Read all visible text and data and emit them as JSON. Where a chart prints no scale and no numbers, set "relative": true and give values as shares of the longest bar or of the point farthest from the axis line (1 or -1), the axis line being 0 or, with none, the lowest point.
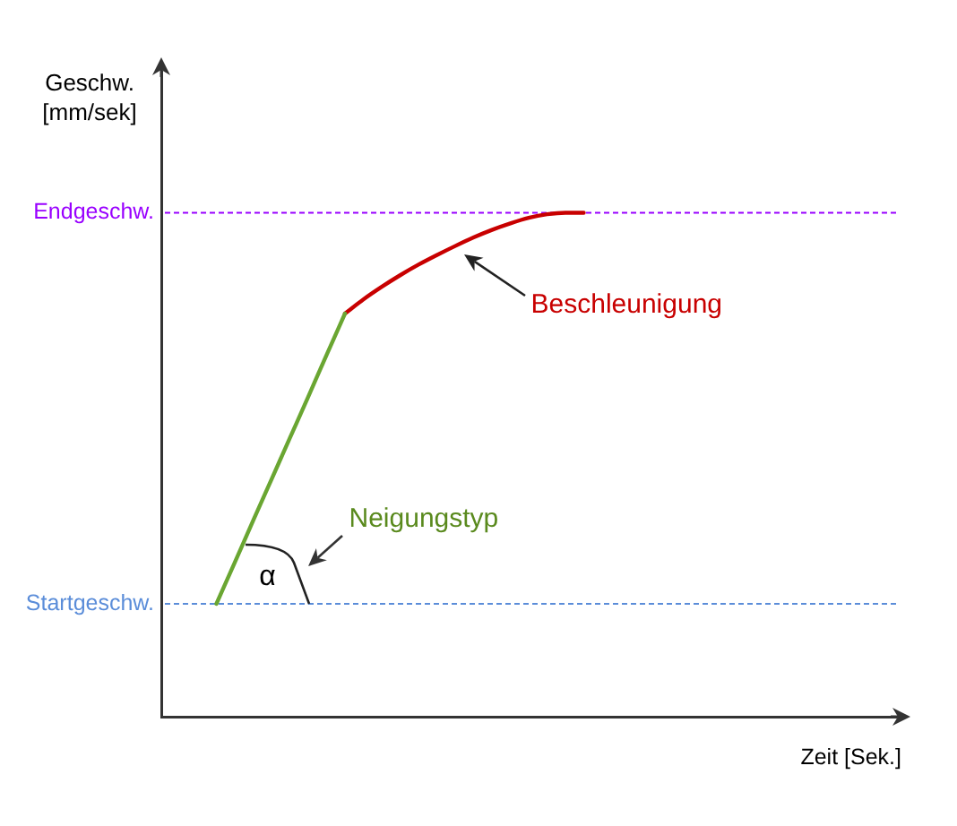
{
  "chart_data": {
    "type": "line",
    "relative": true,
    "ylabel": "Geschw.\n[mm/sek]",
    "xlabel": "Zeit [Sek.]",
    "categories": [
      null,
      null,
      null,
      null,
      null,
      null,
      null,
      null,
      null,
      null,
      null,
      null,
      null,
      null,
      null,
      null,
      null,
      null,
      null,
      null,
      null,
      null,
      null,
      null,
      null,
      null,
      null,
      null,
      null,
      null,
      null,
      null,
      null,
      null,
      null,
      null,
      null,
      null,
      null,
      null,
      null
    ],
    "series": [
      {
        "color": "#6aa632",
        "values": [
          null,
          null,
          null,
          0.224,
          0.306,
          0.389,
          0.471,
          0.553,
          0.635,
          0.718,
          0.8,
          null,
          null,
          null,
          null,
          null,
          null,
          null,
          null,
          null,
          null,
          null,
          null,
          null,
          null,
          null,
          null,
          null,
          null,
          null,
          null,
          null,
          null,
          null,
          null,
          null,
          null,
          null,
          null,
          null,
          null
        ]
      },
      {
        "name": "Beschleunigung",
        "color": "#c80000",
        "values": [
          null,
          null,
          null,
          null,
          null,
          null,
          null,
          null,
          null,
          null,
          0.8,
          0.828,
          0.853,
          0.876,
          0.897,
          0.916,
          0.934,
          0.951,
          0.966,
          0.979,
          0.99,
          0.997,
          1,
          1,
          null,
          null,
          null,
          null,
          null,
          null,
          null,
          null,
          null,
          null,
          null,
          null,
          null,
          null,
          null,
          null,
          null
        ]
      }
    ],
    "ref_lines": [
      {
        "axis": "y",
        "value": 1,
        "label": "Endgeschw.",
        "color": "#9900ff",
        "line_style": "dashed"
      },
      {
        "axis": "y",
        "value": 0.224,
        "label": "Startgeschw.",
        "color": "#5b8dd9",
        "line_style": "dashed"
      }
    ],
    "annotations": [
      "Neigungstyp",
      "α"
    ]
  }
}
